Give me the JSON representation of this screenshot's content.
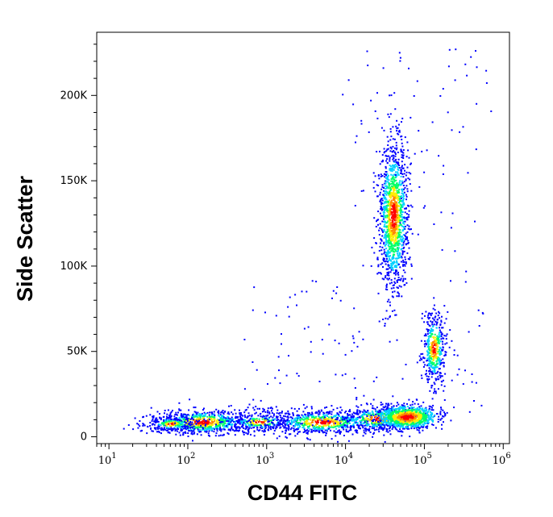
{
  "chart_data": {
    "type": "scatter",
    "style": "density dot plot",
    "xlabel": "CD44 FITC",
    "ylabel": "Side Scatter",
    "x_scale": "log",
    "xlim": [
      7,
      1200000
    ],
    "ylim": [
      -4000,
      237000
    ],
    "x_ticks": [
      {
        "value": 10,
        "base": "10",
        "exp": "1"
      },
      {
        "value": 100,
        "base": "10",
        "exp": "2"
      },
      {
        "value": 1000,
        "base": "10",
        "exp": "3"
      },
      {
        "value": 10000,
        "base": "10",
        "exp": "4"
      },
      {
        "value": 100000,
        "base": "10",
        "exp": "5"
      },
      {
        "value": 1000000,
        "base": "10",
        "exp": "6"
      }
    ],
    "y_ticks": [
      {
        "value": 0,
        "label": "0"
      },
      {
        "value": 50000,
        "label": "50K"
      },
      {
        "value": 100000,
        "label": "100K"
      },
      {
        "value": 150000,
        "label": "150K"
      },
      {
        "value": 200000,
        "label": "200K"
      }
    ],
    "populations": [
      {
        "x_center": 150,
        "y_center": 9000,
        "density": "high"
      },
      {
        "x_center": 5000,
        "y_center": 9000,
        "density": "medium"
      },
      {
        "x_center": 60000,
        "y_center": 12000,
        "density": "very high"
      },
      {
        "x_center": 40000,
        "y_center": 130000,
        "density": "high"
      },
      {
        "x_center": 130000,
        "y_center": 52000,
        "density": "medium"
      }
    ],
    "color_scale": [
      "#0000ff",
      "#00d0ff",
      "#00ff66",
      "#ffee00",
      "#ff8800",
      "#ff0000"
    ]
  }
}
